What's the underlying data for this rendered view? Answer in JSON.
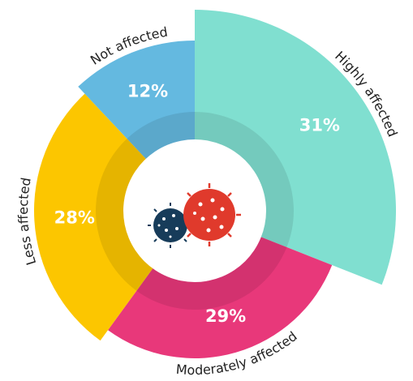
{
  "chart_data": {
    "type": "pie",
    "categories": [
      "Highly affected",
      "Moderately affected",
      "Less affected",
      "Not affected"
    ],
    "values": [
      31,
      29,
      28,
      12
    ],
    "value_labels": [
      "31%",
      "29%",
      "28%",
      "12%"
    ],
    "colors": [
      "#80dfd0",
      "#e8387a",
      "#fcc600",
      "#64b9e0"
    ]
  }
}
